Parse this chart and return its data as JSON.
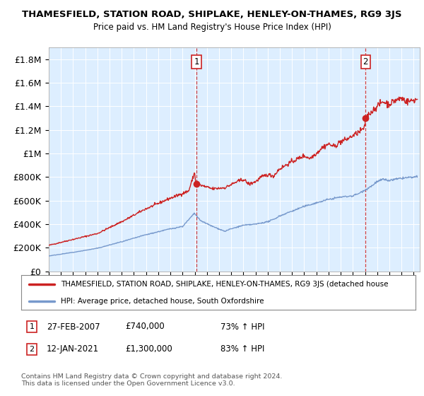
{
  "title": "THAMESFIELD, STATION ROAD, SHIPLAKE, HENLEY-ON-THAMES, RG9 3JS",
  "subtitle": "Price paid vs. HM Land Registry's House Price Index (HPI)",
  "ylim": [
    0,
    1900000
  ],
  "yticks": [
    0,
    200000,
    400000,
    600000,
    800000,
    1000000,
    1200000,
    1400000,
    1600000,
    1800000
  ],
  "ytick_labels": [
    "£0",
    "£200K",
    "£400K",
    "£600K",
    "£800K",
    "£1M",
    "£1.2M",
    "£1.4M",
    "£1.6M",
    "£1.8M"
  ],
  "line1_color": "#cc2222",
  "line2_color": "#7799cc",
  "bg_color": "#ddeeff",
  "marker1_date": 2007.15,
  "marker1_val": 740000,
  "marker1_label": "1",
  "marker2_date": 2021.04,
  "marker2_val": 1300000,
  "marker2_label": "2",
  "legend_line1": "THAMESFIELD, STATION ROAD, SHIPLAKE, HENLEY-ON-THAMES, RG9 3JS (detached house",
  "legend_line2": "HPI: Average price, detached house, South Oxfordshire",
  "annotation1_date": "27-FEB-2007",
  "annotation1_price": "£740,000",
  "annotation1_hpi": "73% ↑ HPI",
  "annotation2_date": "12-JAN-2021",
  "annotation2_price": "£1,300,000",
  "annotation2_hpi": "83% ↑ HPI",
  "footer": "Contains HM Land Registry data © Crown copyright and database right 2024.\nThis data is licensed under the Open Government Licence v3.0.",
  "xmin": 1995.0,
  "xmax": 2025.5
}
